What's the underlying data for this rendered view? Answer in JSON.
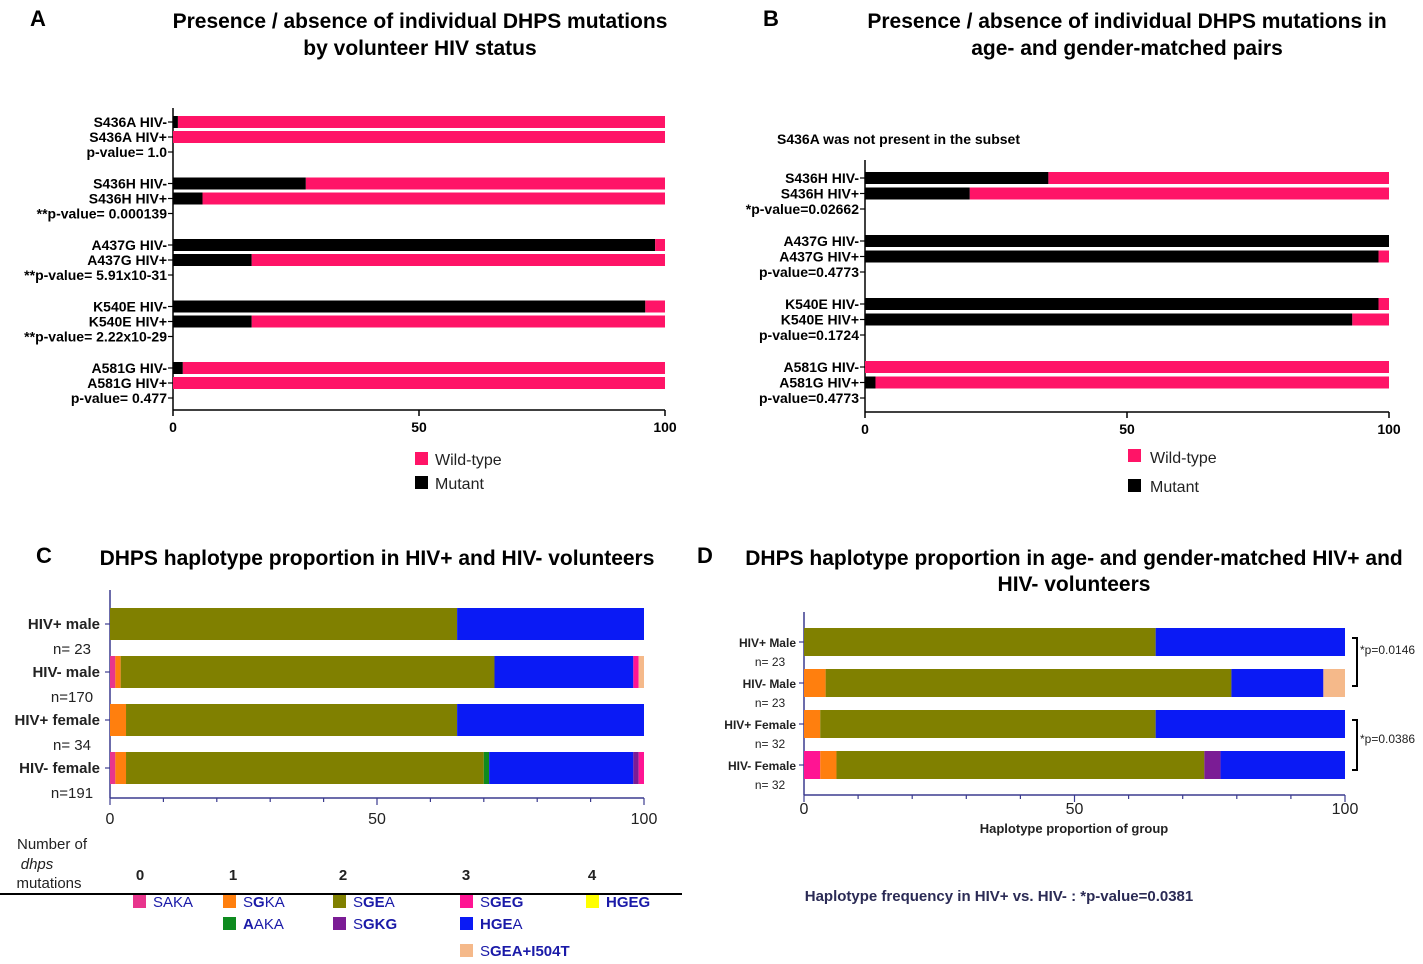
{
  "colors": {
    "wildtype": "#FF1467",
    "mutant": "#000000",
    "axis_blue": "#3b3b8f",
    "SAKA": "#E8358D",
    "SGKA": "#FF7F0E",
    "SGEA": "#808000",
    "SGEG": "#FF1493",
    "HGEG": "#FFFF00",
    "AAKA": "#0E8B1F",
    "SGKG": "#7B1C95",
    "HGEA": "#0A1AF5",
    "SGEA_I504T": "#F5B98A"
  },
  "panels": {
    "A": {
      "letter": "A",
      "title_line1": "Presence / absence of individual DHPS mutations",
      "title_line2": "by volunteer HIV status"
    },
    "B": {
      "letter": "B",
      "title_line1": "Presence / absence of individual DHPS mutations in",
      "title_line2": "age- and gender-matched pairs",
      "note": "S436A was not present in the subset"
    },
    "C": {
      "letter": "C",
      "title": "DHPS haplotype proportion in HIV+ and HIV- volunteers"
    },
    "D": {
      "letter": "D",
      "title_line1": "DHPS haplotype proportion in age- and gender-matched HIV+ and",
      "title_line2": "HIV- volunteers",
      "xlabel": "Haplotype proportion of group",
      "footer": "Haplotype frequency in HIV+ vs. HIV- : *p-value=0.0381"
    }
  },
  "legend_ab": {
    "wildtype": "Wild-type",
    "mutant": "Mutant"
  },
  "haplotype_legend": {
    "header_line1": "Number of",
    "header_line2": "dhps",
    "header_line3": "mutations",
    "counts": [
      "0",
      "1",
      "2",
      "3",
      "4"
    ],
    "items": [
      {
        "key": "SAKA",
        "a": "SAKA",
        "b": "",
        "c": ""
      },
      {
        "key": "SGKA",
        "a": "S",
        "b": "G",
        "c": "KA"
      },
      {
        "key": "SGEA",
        "a": "S",
        "b": "GE",
        "c": "A"
      },
      {
        "key": "SGEG",
        "a": "S",
        "b": "GEG",
        "c": ""
      },
      {
        "key": "HGEG",
        "a": "",
        "b": "HGEG",
        "c": ""
      },
      {
        "key": "AAKA",
        "a": "",
        "b": "A",
        "c": "AKA"
      },
      {
        "key": "SGKG",
        "a": "S",
        "b": "GKG",
        "c": ""
      },
      {
        "key": "HGEA",
        "a": "",
        "b": "HGE",
        "c": "A"
      },
      {
        "key": "SGEA_I504T",
        "a": "S",
        "b": "GEA+I504T",
        "c": ""
      }
    ]
  },
  "chart_data": [
    {
      "panel": "A",
      "type": "bar",
      "orientation": "horizontal",
      "stacked": true,
      "title": "Presence / absence of individual DHPS mutations by volunteer HIV status",
      "xlim": [
        0,
        100
      ],
      "xticks": [
        "0",
        "50",
        "100"
      ],
      "series_names": [
        "Mutant",
        "Wild-type"
      ],
      "groups": [
        {
          "bars": [
            {
              "label": "S436A HIV-",
              "mutant": 1,
              "wildtype": 99
            },
            {
              "label": "S436A HIV+",
              "mutant": 0,
              "wildtype": 100
            }
          ],
          "pvalue": "p-value= 1.0"
        },
        {
          "bars": [
            {
              "label": "S436H HIV-",
              "mutant": 27,
              "wildtype": 73
            },
            {
              "label": "S436H HIV+",
              "mutant": 6,
              "wildtype": 94
            }
          ],
          "pvalue": "**p-value= 0.000139"
        },
        {
          "bars": [
            {
              "label": "A437G HIV-",
              "mutant": 98,
              "wildtype": 2
            },
            {
              "label": "A437G HIV+",
              "mutant": 16,
              "wildtype": 84
            }
          ],
          "pvalue": "**p-value= 5.91x10-31"
        },
        {
          "bars": [
            {
              "label": "K540E HIV-",
              "mutant": 96,
              "wildtype": 4
            },
            {
              "label": "K540E HIV+",
              "mutant": 16,
              "wildtype": 84
            }
          ],
          "pvalue": "**p-value= 2.22x10-29"
        },
        {
          "bars": [
            {
              "label": "A581G HIV-",
              "mutant": 2,
              "wildtype": 98
            },
            {
              "label": "A581G HIV+",
              "mutant": 0,
              "wildtype": 100
            }
          ],
          "pvalue": "p-value= 0.477"
        }
      ]
    },
    {
      "panel": "B",
      "type": "bar",
      "orientation": "horizontal",
      "stacked": true,
      "title": "Presence / absence of individual DHPS mutations in age- and gender-matched pairs",
      "xlim": [
        0,
        100
      ],
      "xticks": [
        "0",
        "50",
        "100"
      ],
      "series_names": [
        "Mutant",
        "Wild-type"
      ],
      "groups": [
        {
          "bars": [
            {
              "label": "S436H HIV-",
              "mutant": 35,
              "wildtype": 65
            },
            {
              "label": "S436H HIV+",
              "mutant": 20,
              "wildtype": 80
            }
          ],
          "pvalue": "*p-value=0.02662"
        },
        {
          "bars": [
            {
              "label": "A437G HIV-",
              "mutant": 100,
              "wildtype": 0
            },
            {
              "label": "A437G HIV+",
              "mutant": 98,
              "wildtype": 2
            }
          ],
          "pvalue": "p-value=0.4773"
        },
        {
          "bars": [
            {
              "label": "K540E HIV-",
              "mutant": 98,
              "wildtype": 2
            },
            {
              "label": "K540E HIV+",
              "mutant": 93,
              "wildtype": 7
            }
          ],
          "pvalue": "p-value=0.1724"
        },
        {
          "bars": [
            {
              "label": "A581G HIV-",
              "mutant": 0,
              "wildtype": 100
            },
            {
              "label": "A581G HIV+",
              "mutant": 2,
              "wildtype": 98
            }
          ],
          "pvalue": "p-value=0.4773"
        }
      ]
    },
    {
      "panel": "C",
      "type": "bar",
      "orientation": "horizontal",
      "stacked": true,
      "title": "DHPS haplotype proportion in HIV+ and HIV- volunteers",
      "xlim": [
        0,
        100
      ],
      "xticks": [
        "0",
        "50",
        "100"
      ],
      "bars": [
        {
          "label": "HIV+ male",
          "n": "n= 23",
          "segments": [
            [
              "SGEA",
              65
            ],
            [
              "HGEA",
              35
            ]
          ]
        },
        {
          "label": "HIV- male",
          "n": "n=170",
          "segments": [
            [
              "SAKA",
              1
            ],
            [
              "SGKA",
              1
            ],
            [
              "SGEA",
              70
            ],
            [
              "HGEA",
              26
            ],
            [
              "SGEG",
              1
            ],
            [
              "SGEA_I504T",
              1
            ]
          ]
        },
        {
          "label": "HIV+ female",
          "n": "n= 34",
          "segments": [
            [
              "SGKA",
              3
            ],
            [
              "SGEA",
              62
            ],
            [
              "HGEA",
              35
            ]
          ]
        },
        {
          "label": "HIV- female",
          "n": "n=191",
          "segments": [
            [
              "SAKA",
              1
            ],
            [
              "SGKA",
              2
            ],
            [
              "SGEA",
              67
            ],
            [
              "AAKA",
              1
            ],
            [
              "HGEA",
              27
            ],
            [
              "SGKG",
              1
            ],
            [
              "SGEG",
              1
            ]
          ]
        }
      ]
    },
    {
      "panel": "D",
      "type": "bar",
      "orientation": "horizontal",
      "stacked": true,
      "title": "DHPS haplotype proportion in age- and gender-matched HIV+ and HIV- volunteers",
      "xlabel": "Haplotype proportion of group",
      "xlim": [
        0,
        100
      ],
      "xticks": [
        "0",
        "50",
        "100"
      ],
      "bars": [
        {
          "label": "HIV+ Male",
          "n": "n= 23",
          "segments": [
            [
              "SGEA",
              65
            ],
            [
              "HGEA",
              35
            ]
          ]
        },
        {
          "label": "HIV- Male",
          "n": "n= 23",
          "segments": [
            [
              "SGKA",
              4
            ],
            [
              "SGEA",
              75
            ],
            [
              "HGEA",
              17
            ],
            [
              "SGEA_I504T",
              4
            ]
          ]
        },
        {
          "label": "HIV+ Female",
          "n": "n= 32",
          "segments": [
            [
              "SGKA",
              3
            ],
            [
              "SGEA",
              62
            ],
            [
              "HGEA",
              35
            ]
          ]
        },
        {
          "label": "HIV- Female",
          "n": "n= 32",
          "segments": [
            [
              "SGEG",
              3
            ],
            [
              "SGKA",
              3
            ],
            [
              "SGEA",
              68
            ],
            [
              "SGKG",
              3
            ],
            [
              "HGEA",
              23
            ]
          ]
        }
      ],
      "comparisons": [
        {
          "between": [
            "HIV+ Male",
            "HIV- Male"
          ],
          "label": "*p=0.0146"
        },
        {
          "between": [
            "HIV+ Female",
            "HIV- Female"
          ],
          "label": "*p=0.0386"
        }
      ]
    }
  ]
}
